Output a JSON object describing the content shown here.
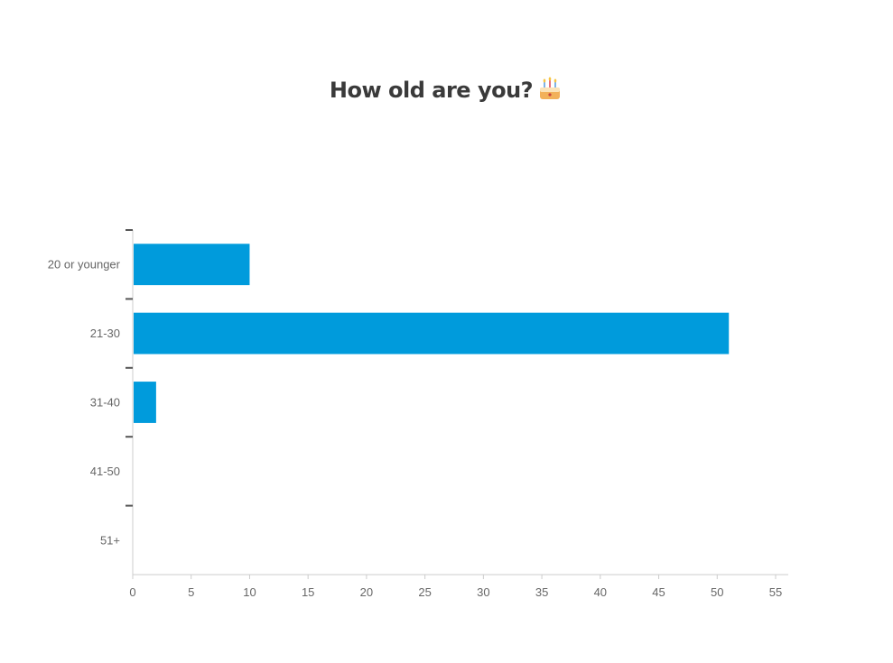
{
  "title": "How old are you?",
  "title_icon": "birthday-cake-icon",
  "chart_data": {
    "type": "bar",
    "orientation": "horizontal",
    "title": "How old are you?",
    "categories": [
      "20 or younger",
      "21-30",
      "31-40",
      "41-50",
      "51+"
    ],
    "values": [
      10,
      51,
      2,
      0,
      0
    ],
    "xlim": [
      0,
      55
    ],
    "xticks": [
      0,
      5,
      10,
      15,
      20,
      25,
      30,
      35,
      40,
      45,
      50,
      55
    ],
    "xlabel": "",
    "ylabel": "",
    "grid": false,
    "bar_color": "#009bdc",
    "axis_color": "#cccccc",
    "text_color": "#666666"
  }
}
